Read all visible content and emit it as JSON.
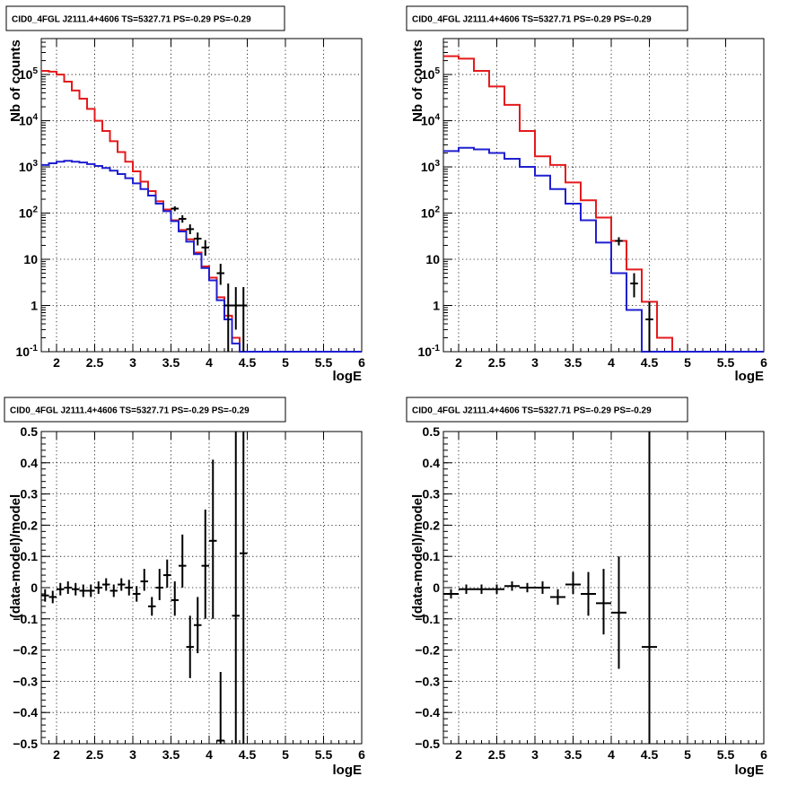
{
  "chart_data": [
    {
      "type": "line",
      "title": "CID0_4FGL J2111.4+4606 TS=5327.71 PS=-0.29 PS=-0.29",
      "xlabel": "logE",
      "ylabel": "Nb of counts",
      "xlim": [
        1.8,
        6
      ],
      "ylim": [
        0.1,
        600000
      ],
      "yscale": "log",
      "grid": true,
      "x_ticks": [
        "2",
        "2.5",
        "3",
        "3.5",
        "4",
        "4.5",
        "5",
        "5.5",
        "6"
      ],
      "y_ticks": [
        "10^-1",
        "1",
        "10",
        "10^2",
        "10^3",
        "10^4",
        "10^5"
      ],
      "bin_edges": [
        1.8,
        1.9,
        2.0,
        2.1,
        2.2,
        2.3,
        2.4,
        2.5,
        2.6,
        2.7,
        2.8,
        2.9,
        3.0,
        3.1,
        3.2,
        3.3,
        3.4,
        3.5,
        3.6,
        3.7,
        3.8,
        3.9,
        4.0,
        4.1,
        4.2,
        4.3,
        4.4,
        4.5,
        4.6,
        4.7,
        4.8,
        4.9,
        5.0,
        5.1,
        5.2,
        5.3,
        5.4,
        5.5,
        5.6,
        5.7,
        5.8,
        5.9,
        6.0
      ],
      "series": [
        {
          "name": "",
          "color": "#e41a1c",
          "style": "step",
          "values": [
            120000,
            115000,
            100000,
            70000,
            45000,
            30000,
            18000,
            10000,
            6000,
            3600,
            2100,
            1300,
            800,
            480,
            300,
            180,
            120,
            70,
            43,
            27,
            14,
            7,
            4,
            1.5,
            0.6,
            0.2,
            0.1,
            0.1,
            0.1,
            0.1,
            0.1,
            0.1,
            0.1,
            0.1,
            0.1,
            0.1,
            0.1,
            0.1,
            0.1,
            0.1,
            0.1,
            0.1
          ]
        },
        {
          "name": "",
          "color": "#1f1fd0",
          "style": "step",
          "values": [
            1100,
            1200,
            1300,
            1350,
            1300,
            1250,
            1150,
            1050,
            950,
            830,
            700,
            570,
            440,
            330,
            240,
            160,
            110,
            67,
            40,
            24,
            13,
            6.5,
            3.5,
            1.3,
            0.5,
            0.15,
            0.1,
            0.1,
            0.1,
            0.1,
            0.1,
            0.1,
            0.1,
            0.1,
            0.1,
            0.1,
            0.1,
            0.1,
            0.1,
            0.1,
            0.1,
            0.1
          ]
        },
        {
          "name": "",
          "color": "#000000",
          "style": "errorbar",
          "points": [
            {
              "x": 3.55,
              "y": 125,
              "ylo": 110,
              "yhi": 140
            },
            {
              "x": 3.65,
              "y": 75,
              "ylo": 62,
              "yhi": 90
            },
            {
              "x": 3.75,
              "y": 45,
              "ylo": 35,
              "yhi": 57
            },
            {
              "x": 3.85,
              "y": 28,
              "ylo": 20,
              "yhi": 38
            },
            {
              "x": 3.95,
              "y": 18,
              "ylo": 12,
              "yhi": 26
            },
            {
              "x": 4.15,
              "y": 5,
              "ylo": 2.8,
              "yhi": 8
            },
            {
              "x": 4.25,
              "y": 1,
              "ylo": 0.1,
              "yhi": 3
            },
            {
              "x": 4.35,
              "y": 1,
              "ylo": 0.3,
              "yhi": 2.5
            },
            {
              "x": 4.45,
              "y": 1,
              "ylo": 0.1,
              "yhi": 2.5
            }
          ]
        }
      ]
    },
    {
      "type": "line",
      "title": "CID0_4FGL J2111.4+4606 TS=5327.71 PS=-0.29 PS=-0.29",
      "xlabel": "logE",
      "ylabel": "Nb of counts",
      "xlim": [
        1.8,
        6
      ],
      "ylim": [
        0.1,
        600000
      ],
      "yscale": "log",
      "grid": true,
      "x_ticks": [
        "2",
        "2.5",
        "3",
        "3.5",
        "4",
        "4.5",
        "5",
        "5.5",
        "6"
      ],
      "y_ticks": [
        "10^-1",
        "1",
        "10",
        "10^2",
        "10^3",
        "10^4",
        "10^5"
      ],
      "bin_edges": [
        1.8,
        2.0,
        2.2,
        2.4,
        2.6,
        2.8,
        3.0,
        3.2,
        3.4,
        3.6,
        3.8,
        4.0,
        4.2,
        4.4,
        4.6,
        4.8,
        5.0,
        5.2,
        5.4,
        5.6,
        5.8,
        6.0
      ],
      "series": [
        {
          "name": "",
          "color": "#e41a1c",
          "style": "step",
          "values": [
            250000,
            220000,
            120000,
            55000,
            22000,
            6000,
            1700,
            1100,
            460,
            190,
            80,
            25,
            6,
            1.2,
            0.2,
            0.1,
            0.1,
            0.1,
            0.1,
            0.1,
            0.1
          ]
        },
        {
          "name": "",
          "color": "#1f1fd0",
          "style": "step",
          "values": [
            2200,
            2600,
            2400,
            2000,
            1500,
            1000,
            650,
            330,
            160,
            70,
            23,
            5,
            0.8,
            0.1,
            0.1,
            0.1,
            0.1,
            0.1,
            0.1,
            0.1,
            0.1
          ]
        },
        {
          "name": "",
          "color": "#000000",
          "style": "errorbar",
          "points": [
            {
              "x": 4.1,
              "y": 25,
              "ylo": 20,
              "yhi": 30
            },
            {
              "x": 4.3,
              "y": 3,
              "ylo": 1.5,
              "yhi": 5
            },
            {
              "x": 4.5,
              "y": 0.5,
              "ylo": 0.1,
              "yhi": 1.2
            }
          ]
        }
      ]
    },
    {
      "type": "scatter",
      "title": "CID0_4FGL J2111.4+4606 TS=5327.71 PS=-0.29 PS=-0.29",
      "xlabel": "logE",
      "ylabel": "(data-model)/model",
      "xlim": [
        1.8,
        6
      ],
      "ylim": [
        -0.5,
        0.5
      ],
      "grid": true,
      "x_ticks": [
        "2",
        "2.5",
        "3",
        "3.5",
        "4",
        "4.5",
        "5",
        "5.5",
        "6"
      ],
      "y_ticks": [
        "-0.5",
        "-0.4",
        "-0.3",
        "-0.2",
        "-0.1",
        "0",
        "0.1",
        "0.2",
        "0.3",
        "0.4",
        "0.5"
      ],
      "x_halfwidth": 0.05,
      "series": [
        {
          "name": "",
          "color": "#000000",
          "style": "errorbar",
          "points": [
            {
              "x": 1.85,
              "y": -0.025,
              "ylo": -0.045,
              "yhi": -0.005
            },
            {
              "x": 1.95,
              "y": -0.03,
              "ylo": -0.05,
              "yhi": -0.01
            },
            {
              "x": 2.05,
              "y": -0.005,
              "ylo": -0.025,
              "yhi": 0.015
            },
            {
              "x": 2.15,
              "y": 0.0,
              "ylo": -0.02,
              "yhi": 0.02
            },
            {
              "x": 2.25,
              "y": -0.005,
              "ylo": -0.025,
              "yhi": 0.015
            },
            {
              "x": 2.35,
              "y": -0.01,
              "ylo": -0.03,
              "yhi": 0.01
            },
            {
              "x": 2.45,
              "y": -0.01,
              "ylo": -0.03,
              "yhi": 0.01
            },
            {
              "x": 2.55,
              "y": 0.0,
              "ylo": -0.02,
              "yhi": 0.02
            },
            {
              "x": 2.65,
              "y": 0.01,
              "ylo": -0.01,
              "yhi": 0.03
            },
            {
              "x": 2.75,
              "y": -0.01,
              "ylo": -0.03,
              "yhi": 0.01
            },
            {
              "x": 2.85,
              "y": 0.01,
              "ylo": -0.01,
              "yhi": 0.03
            },
            {
              "x": 2.95,
              "y": 0.0,
              "ylo": -0.025,
              "yhi": 0.025
            },
            {
              "x": 3.05,
              "y": -0.02,
              "ylo": -0.045,
              "yhi": 0.005
            },
            {
              "x": 3.15,
              "y": 0.02,
              "ylo": -0.01,
              "yhi": 0.06
            },
            {
              "x": 3.25,
              "y": -0.06,
              "ylo": -0.09,
              "yhi": -0.03
            },
            {
              "x": 3.35,
              "y": 0.0,
              "ylo": -0.04,
              "yhi": 0.06
            },
            {
              "x": 3.45,
              "y": 0.04,
              "ylo": 0.0,
              "yhi": 0.09
            },
            {
              "x": 3.55,
              "y": -0.04,
              "ylo": -0.09,
              "yhi": 0.02
            },
            {
              "x": 3.65,
              "y": 0.07,
              "ylo": 0.0,
              "yhi": 0.17
            },
            {
              "x": 3.75,
              "y": -0.19,
              "ylo": -0.29,
              "yhi": -0.09
            },
            {
              "x": 3.85,
              "y": -0.12,
              "ylo": -0.21,
              "yhi": -0.03
            },
            {
              "x": 3.95,
              "y": 0.07,
              "ylo": -0.1,
              "yhi": 0.25
            },
            {
              "x": 4.05,
              "y": 0.15,
              "ylo": -0.1,
              "yhi": 0.41
            },
            {
              "x": 4.15,
              "y": -0.49,
              "ylo": -0.5,
              "yhi": -0.27
            },
            {
              "x": 4.35,
              "y": -0.09,
              "ylo": -0.5,
              "yhi": 0.5
            },
            {
              "x": 4.45,
              "y": 0.11,
              "ylo": -0.5,
              "yhi": 0.5
            }
          ]
        }
      ]
    },
    {
      "type": "scatter",
      "title": "CID0_4FGL J2111.4+4606 TS=5327.71 PS=-0.29 PS=-0.29",
      "xlabel": "logE",
      "ylabel": "(data-model)/model",
      "xlim": [
        1.8,
        6
      ],
      "ylim": [
        -0.5,
        0.5
      ],
      "grid": true,
      "x_ticks": [
        "2",
        "2.5",
        "3",
        "3.5",
        "4",
        "4.5",
        "5",
        "5.5",
        "6"
      ],
      "y_ticks": [
        "-0.5",
        "-0.4",
        "-0.3",
        "-0.2",
        "-0.1",
        "0",
        "0.1",
        "0.2",
        "0.3",
        "0.4",
        "0.5"
      ],
      "x_halfwidth": 0.1,
      "series": [
        {
          "name": "",
          "color": "#000000",
          "style": "errorbar",
          "points": [
            {
              "x": 1.9,
              "y": -0.02,
              "ylo": -0.035,
              "yhi": -0.005
            },
            {
              "x": 2.1,
              "y": -0.005,
              "ylo": -0.02,
              "yhi": 0.01
            },
            {
              "x": 2.3,
              "y": -0.005,
              "ylo": -0.02,
              "yhi": 0.01
            },
            {
              "x": 2.5,
              "y": -0.005,
              "ylo": -0.02,
              "yhi": 0.01
            },
            {
              "x": 2.7,
              "y": 0.005,
              "ylo": -0.01,
              "yhi": 0.02
            },
            {
              "x": 2.9,
              "y": 0.0,
              "ylo": -0.015,
              "yhi": 0.015
            },
            {
              "x": 3.1,
              "y": 0.0,
              "ylo": -0.02,
              "yhi": 0.02
            },
            {
              "x": 3.3,
              "y": -0.03,
              "ylo": -0.055,
              "yhi": -0.005
            },
            {
              "x": 3.5,
              "y": 0.01,
              "ylo": -0.02,
              "yhi": 0.05
            },
            {
              "x": 3.7,
              "y": -0.02,
              "ylo": -0.09,
              "yhi": 0.05
            },
            {
              "x": 3.9,
              "y": -0.05,
              "ylo": -0.15,
              "yhi": 0.06
            },
            {
              "x": 4.1,
              "y": -0.08,
              "ylo": -0.26,
              "yhi": 0.1
            },
            {
              "x": 4.5,
              "y": -0.19,
              "ylo": -0.5,
              "yhi": 0.5
            }
          ]
        }
      ]
    }
  ]
}
